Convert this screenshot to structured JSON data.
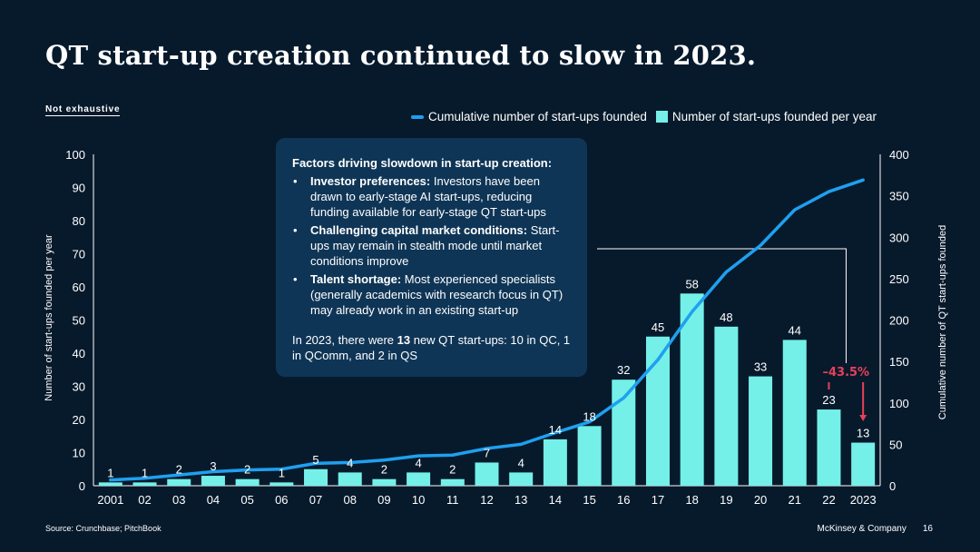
{
  "title": "QT start-up creation continued to slow in 2023.",
  "tag": "Not exhaustive",
  "legend": {
    "line_label": "Cumulative number of start-ups founded",
    "bar_label": "Number of start-ups founded per year"
  },
  "chart_data": {
    "type": "bar",
    "categories": [
      "2001",
      "02",
      "03",
      "04",
      "05",
      "06",
      "07",
      "08",
      "09",
      "10",
      "11",
      "12",
      "13",
      "14",
      "15",
      "16",
      "17",
      "18",
      "19",
      "20",
      "21",
      "22",
      "2023"
    ],
    "series": [
      {
        "name": "Number of start-ups founded per year",
        "type": "bar",
        "axis": "left",
        "values": [
          1,
          1,
          2,
          3,
          2,
          1,
          5,
          4,
          2,
          4,
          2,
          7,
          4,
          14,
          18,
          32,
          45,
          58,
          48,
          33,
          44,
          23,
          13
        ]
      },
      {
        "name": "Cumulative number of start-ups founded",
        "type": "line",
        "axis": "right",
        "values": [
          7,
          9,
          13,
          17,
          19,
          20,
          27,
          28,
          31,
          36,
          37,
          45,
          50,
          64,
          77,
          106,
          152,
          210,
          258,
          290,
          333,
          355,
          369
        ]
      }
    ],
    "ylabel": "Number of start-ups founded per year",
    "ylabel_right": "Cumulative number of QT start-ups founded",
    "ylim": [
      0,
      100
    ],
    "ylim_right": [
      0,
      400
    ],
    "yticks": [
      0,
      10,
      20,
      30,
      40,
      50,
      60,
      70,
      80,
      90,
      100
    ],
    "yticks_right": [
      0,
      50,
      100,
      150,
      200,
      250,
      300,
      350,
      400
    ],
    "annotation": {
      "text": "–43.5%",
      "from": "22",
      "to": "2023"
    },
    "colors": {
      "bar": "#74f0e8",
      "line": "#1fa0ef",
      "annotation": "#e8405a",
      "axis": "#ffffff"
    }
  },
  "callout": {
    "heading": "Factors driving slowdown in start-up creation:",
    "bullets": [
      {
        "bold": "Investor preferences:",
        "text": " Investors have been drawn to early-stage AI start-ups, reducing funding available for early-stage QT start-ups"
      },
      {
        "bold": "Challenging capital market conditions:",
        "text": " Start-ups may remain in stealth mode until market conditions improve"
      },
      {
        "bold": "Talent shortage:",
        "text": " Most experienced specialists (generally academics with research focus in QT) may already work in an existing start-up"
      }
    ],
    "note_pre": "In 2023, there were ",
    "note_bold": "13",
    "note_post": " new QT start-ups: 10 in QC, 1 in QComm, and 2 in QS"
  },
  "footer": {
    "source": "Source: Crunchbase; PitchBook",
    "company": "McKinsey & Company",
    "page": "16"
  }
}
